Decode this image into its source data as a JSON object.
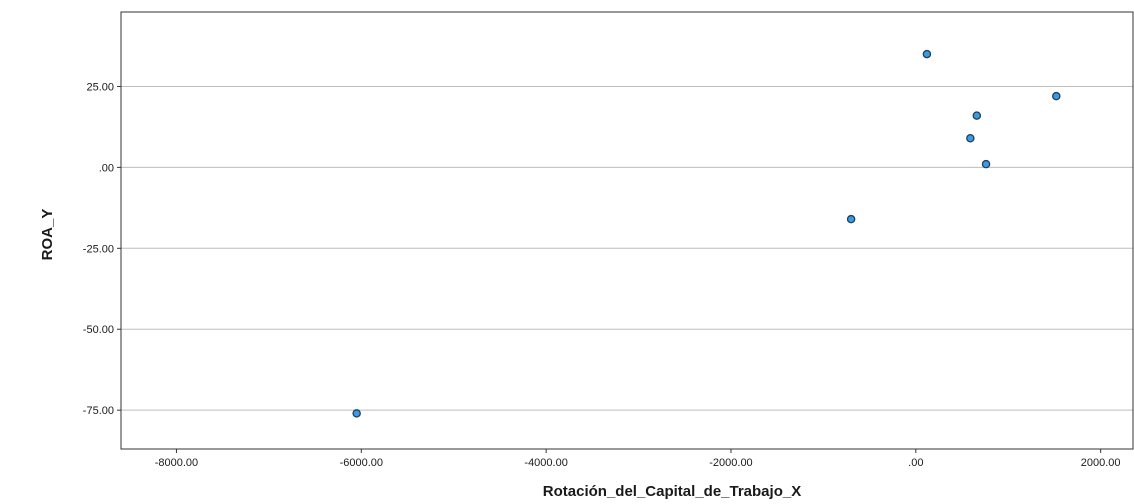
{
  "chart_data": {
    "type": "scatter",
    "title": "",
    "xlabel": "Rotación_del_Capital_de_Trabajo_X",
    "ylabel": "ROA_Y",
    "xlim": [
      -8600,
      2350
    ],
    "ylim": [
      -87,
      48
    ],
    "x_ticks": [
      -8000,
      -6000,
      -4000,
      -2000,
      0,
      2000
    ],
    "x_tick_labels": [
      "-8000.00",
      "-6000.00",
      "-4000.00",
      "-2000.00",
      ".00",
      "2000.00"
    ],
    "y_ticks": [
      25,
      0,
      -25,
      -50,
      -75
    ],
    "y_tick_labels": [
      "25.00",
      ".00",
      "-25.00",
      "-50.00",
      "-75.00"
    ],
    "grid": "horizontal",
    "points": [
      {
        "x": -6050,
        "y": -76
      },
      {
        "x": -700,
        "y": -16
      },
      {
        "x": 120,
        "y": 35
      },
      {
        "x": 590,
        "y": 9
      },
      {
        "x": 660,
        "y": 16
      },
      {
        "x": 760,
        "y": 1
      },
      {
        "x": 1520,
        "y": 22
      }
    ],
    "marker_fill": "#3b9ae1",
    "marker_stroke": "#1d3f5e"
  }
}
